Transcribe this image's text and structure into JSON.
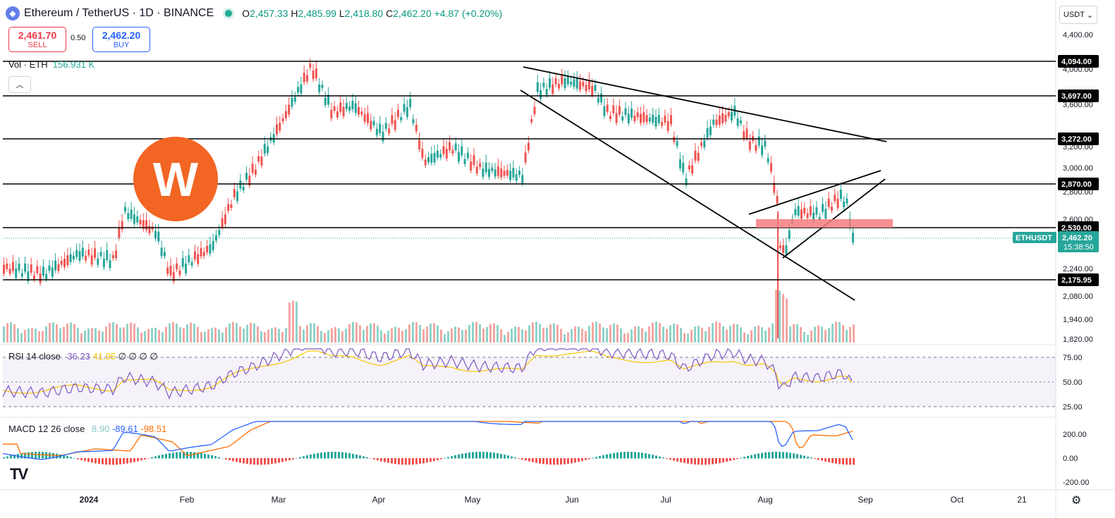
{
  "header": {
    "logo_icon": "ethereum-logo-icon",
    "symbol": "Ethereum / TetherUS · 1D · BINANCE",
    "o_label": "O",
    "o": "2,457.33",
    "h_label": "H",
    "h": "2,485.99",
    "l_label": "L",
    "l": "2,418.80",
    "c_label": "C",
    "c": "2,462.20",
    "change": "+4.87 (+0.20%)"
  },
  "trade": {
    "sell_price": "2,461.70",
    "sell_label": "SELL",
    "spread": "0.50",
    "buy_price": "2,462.20",
    "buy_label": "BUY"
  },
  "volume_legend": {
    "label": "Vol · ETH",
    "value": "156.931 K"
  },
  "currency_select": "USDT",
  "price_axis": {
    "ticks": [
      "4,400.00",
      "4,000.00",
      "3,600.00",
      "3,200.00",
      "3,000.00",
      "2,800.00",
      "2,600.00",
      "2,240.00",
      "2,080.00",
      "1,940.00",
      "1,820.00"
    ]
  },
  "levels": [
    {
      "label": "4,094.00"
    },
    {
      "label": "3,697.00"
    },
    {
      "label": "3,272.00"
    },
    {
      "label": "2,870.00"
    },
    {
      "label": "2,530.00"
    },
    {
      "label": "2,175.95"
    }
  ],
  "last_price": {
    "symbol": "ETHUSDT",
    "price": "2,462.20",
    "countdown": "15:38:50",
    "color": "#26a69a"
  },
  "rsi": {
    "name": "RSI 14 close",
    "v1": "36.23",
    "v2": "41.95",
    "extra": "∅ ∅ ∅ ∅",
    "ticks": [
      "75.00",
      "50.00",
      "25.00"
    ],
    "colors": {
      "rsi": "#7e57c2",
      "ma": "#f7c600"
    }
  },
  "macd": {
    "name": "MACD 12 26 close",
    "hist": "8.90",
    "macd": "-89.61",
    "signal": "-98.51",
    "ticks": [
      "200.00",
      "0.00",
      "-200.00"
    ],
    "colors": {
      "macd": "#2962ff",
      "signal": "#ff6d00",
      "hist_up": "#26a69a",
      "hist_down": "#ef5350"
    }
  },
  "time_axis": {
    "ticks": [
      "2024",
      "Feb",
      "Mar",
      "Apr",
      "May",
      "Jun",
      "Jul",
      "Aug",
      "Sep",
      "Oct",
      "21"
    ]
  },
  "colors": {
    "up": "#26a69a",
    "down": "#ef5350",
    "zone": "#f77c80"
  },
  "footer": {
    "tv_logo": "TV",
    "settings_icon": "gear-icon"
  }
}
